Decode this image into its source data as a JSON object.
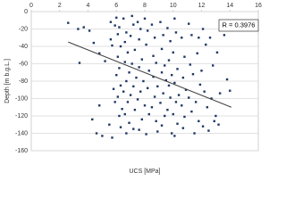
{
  "chart_data": {
    "type": "scatter",
    "x_label": "UCS [MPa]",
    "y_label": "Depth [m b.g.L.]",
    "annotation": "R = 0.3976",
    "color": "#1f3864",
    "trend_color": "#404040",
    "xlim": [
      0,
      16
    ],
    "xticks": [
      0,
      2,
      4,
      6,
      8,
      10,
      12,
      14,
      16
    ],
    "ylim": [
      -160,
      0
    ],
    "yticks": [
      0,
      -20,
      -40,
      -60,
      -80,
      -100,
      -120,
      -140,
      -160
    ],
    "grid": true,
    "trendline": {
      "x": [
        2.6,
        14.1
      ],
      "y": [
        -35,
        -110
      ]
    },
    "x": [
      2.6,
      3.3,
      3.7,
      4.1,
      3.4,
      4.4,
      4.8,
      5.2,
      4.3,
      4.8,
      5.0,
      4.6,
      5.6,
      5.9,
      5.6,
      5.7,
      5.8,
      5.9,
      5.5,
      5.7,
      6.0,
      6.2,
      6.1,
      6.3,
      6.1,
      6.2,
      6.0,
      6.3,
      6.1,
      6.4,
      6.2,
      6.3,
      6.5,
      6.7,
      6.6,
      6.8,
      6.6,
      6.9,
      6.7,
      6.5,
      6.8,
      6.6,
      6.9,
      6.7,
      7.1,
      7.2,
      7.0,
      7.3,
      7.1,
      7.4,
      7.2,
      7.0,
      7.3,
      7.2,
      7.5,
      7.7,
      7.6,
      7.8,
      7.6,
      7.9,
      7.7,
      7.5,
      7.8,
      7.6,
      8.0,
      8.2,
      8.1,
      8.3,
      8.2,
      8.0,
      8.3,
      8.1,
      8.5,
      8.7,
      8.6,
      8.8,
      8.6,
      8.9,
      8.7,
      8.5,
      8.8,
      8.9,
      9.1,
      9.3,
      9.2,
      9.4,
      9.2,
      9.5,
      9.3,
      9.1,
      9.4,
      9.2,
      9.6,
      9.8,
      9.7,
      9.9,
      9.7,
      9.8,
      9.6,
      9.9,
      10.1,
      10.2,
      10.0,
      10.3,
      10.1,
      10.4,
      10.2,
      10.0,
      10.3,
      10.1,
      10.6,
      10.8,
      10.7,
      10.9,
      10.6,
      10.8,
      10.7,
      11.1,
      11.3,
      11.2,
      11.4,
      11.1,
      11.3,
      11.5,
      11.8,
      11.7,
      11.9,
      11.6,
      11.8,
      12.1,
      12.3,
      12.0,
      12.2,
      12.4,
      12.1,
      12.6,
      12.8,
      12.7,
      12.9,
      12.5,
      13.1,
      13.0,
      13.2,
      13.3,
      13.8,
      14.0,
      13.6
    ],
    "y": [
      -13,
      -20,
      -18,
      -22,
      -59,
      -36,
      -48,
      -57,
      -124,
      -108,
      -143,
      -140,
      -12,
      -16,
      -32,
      -39,
      -89,
      -104,
      -130,
      -145,
      -7,
      -18,
      -26,
      -40,
      -52,
      -65,
      -73,
      -85,
      -98,
      -112,
      -120,
      -133,
      -8,
      -24,
      -35,
      -47,
      -58,
      -70,
      -80,
      -92,
      -104,
      -118,
      -128,
      -140,
      -5,
      -15,
      -28,
      -44,
      -60,
      -76,
      -86,
      -96,
      -113,
      -135,
      -12,
      -20,
      -32,
      -55,
      -64,
      -80,
      -92,
      -101,
      -124,
      -136,
      -8,
      -22,
      -38,
      -68,
      -88,
      -108,
      -118,
      -141,
      -15,
      -30,
      -51,
      -59,
      -75,
      -86,
      -98,
      -110,
      -126,
      -138,
      -12,
      -27,
      -43,
      -62,
      -70,
      -79,
      -94,
      -105,
      -120,
      -131,
      -19,
      -34,
      -56,
      -73,
      -85,
      -99,
      -113,
      -140,
      -8,
      -24,
      -47,
      -66,
      -82,
      -96,
      -104,
      -118,
      -129,
      -143,
      -30,
      -52,
      -76,
      -90,
      -108,
      -121,
      -134,
      -14,
      -27,
      -61,
      -72,
      -99,
      -115,
      -140,
      -30,
      -48,
      -84,
      -104,
      -126,
      -20,
      -38,
      -68,
      -92,
      -110,
      -132,
      -30,
      -62,
      -100,
      -126,
      -137,
      -47,
      -120,
      -130,
      -94,
      -78,
      -91,
      -27
    ]
  }
}
